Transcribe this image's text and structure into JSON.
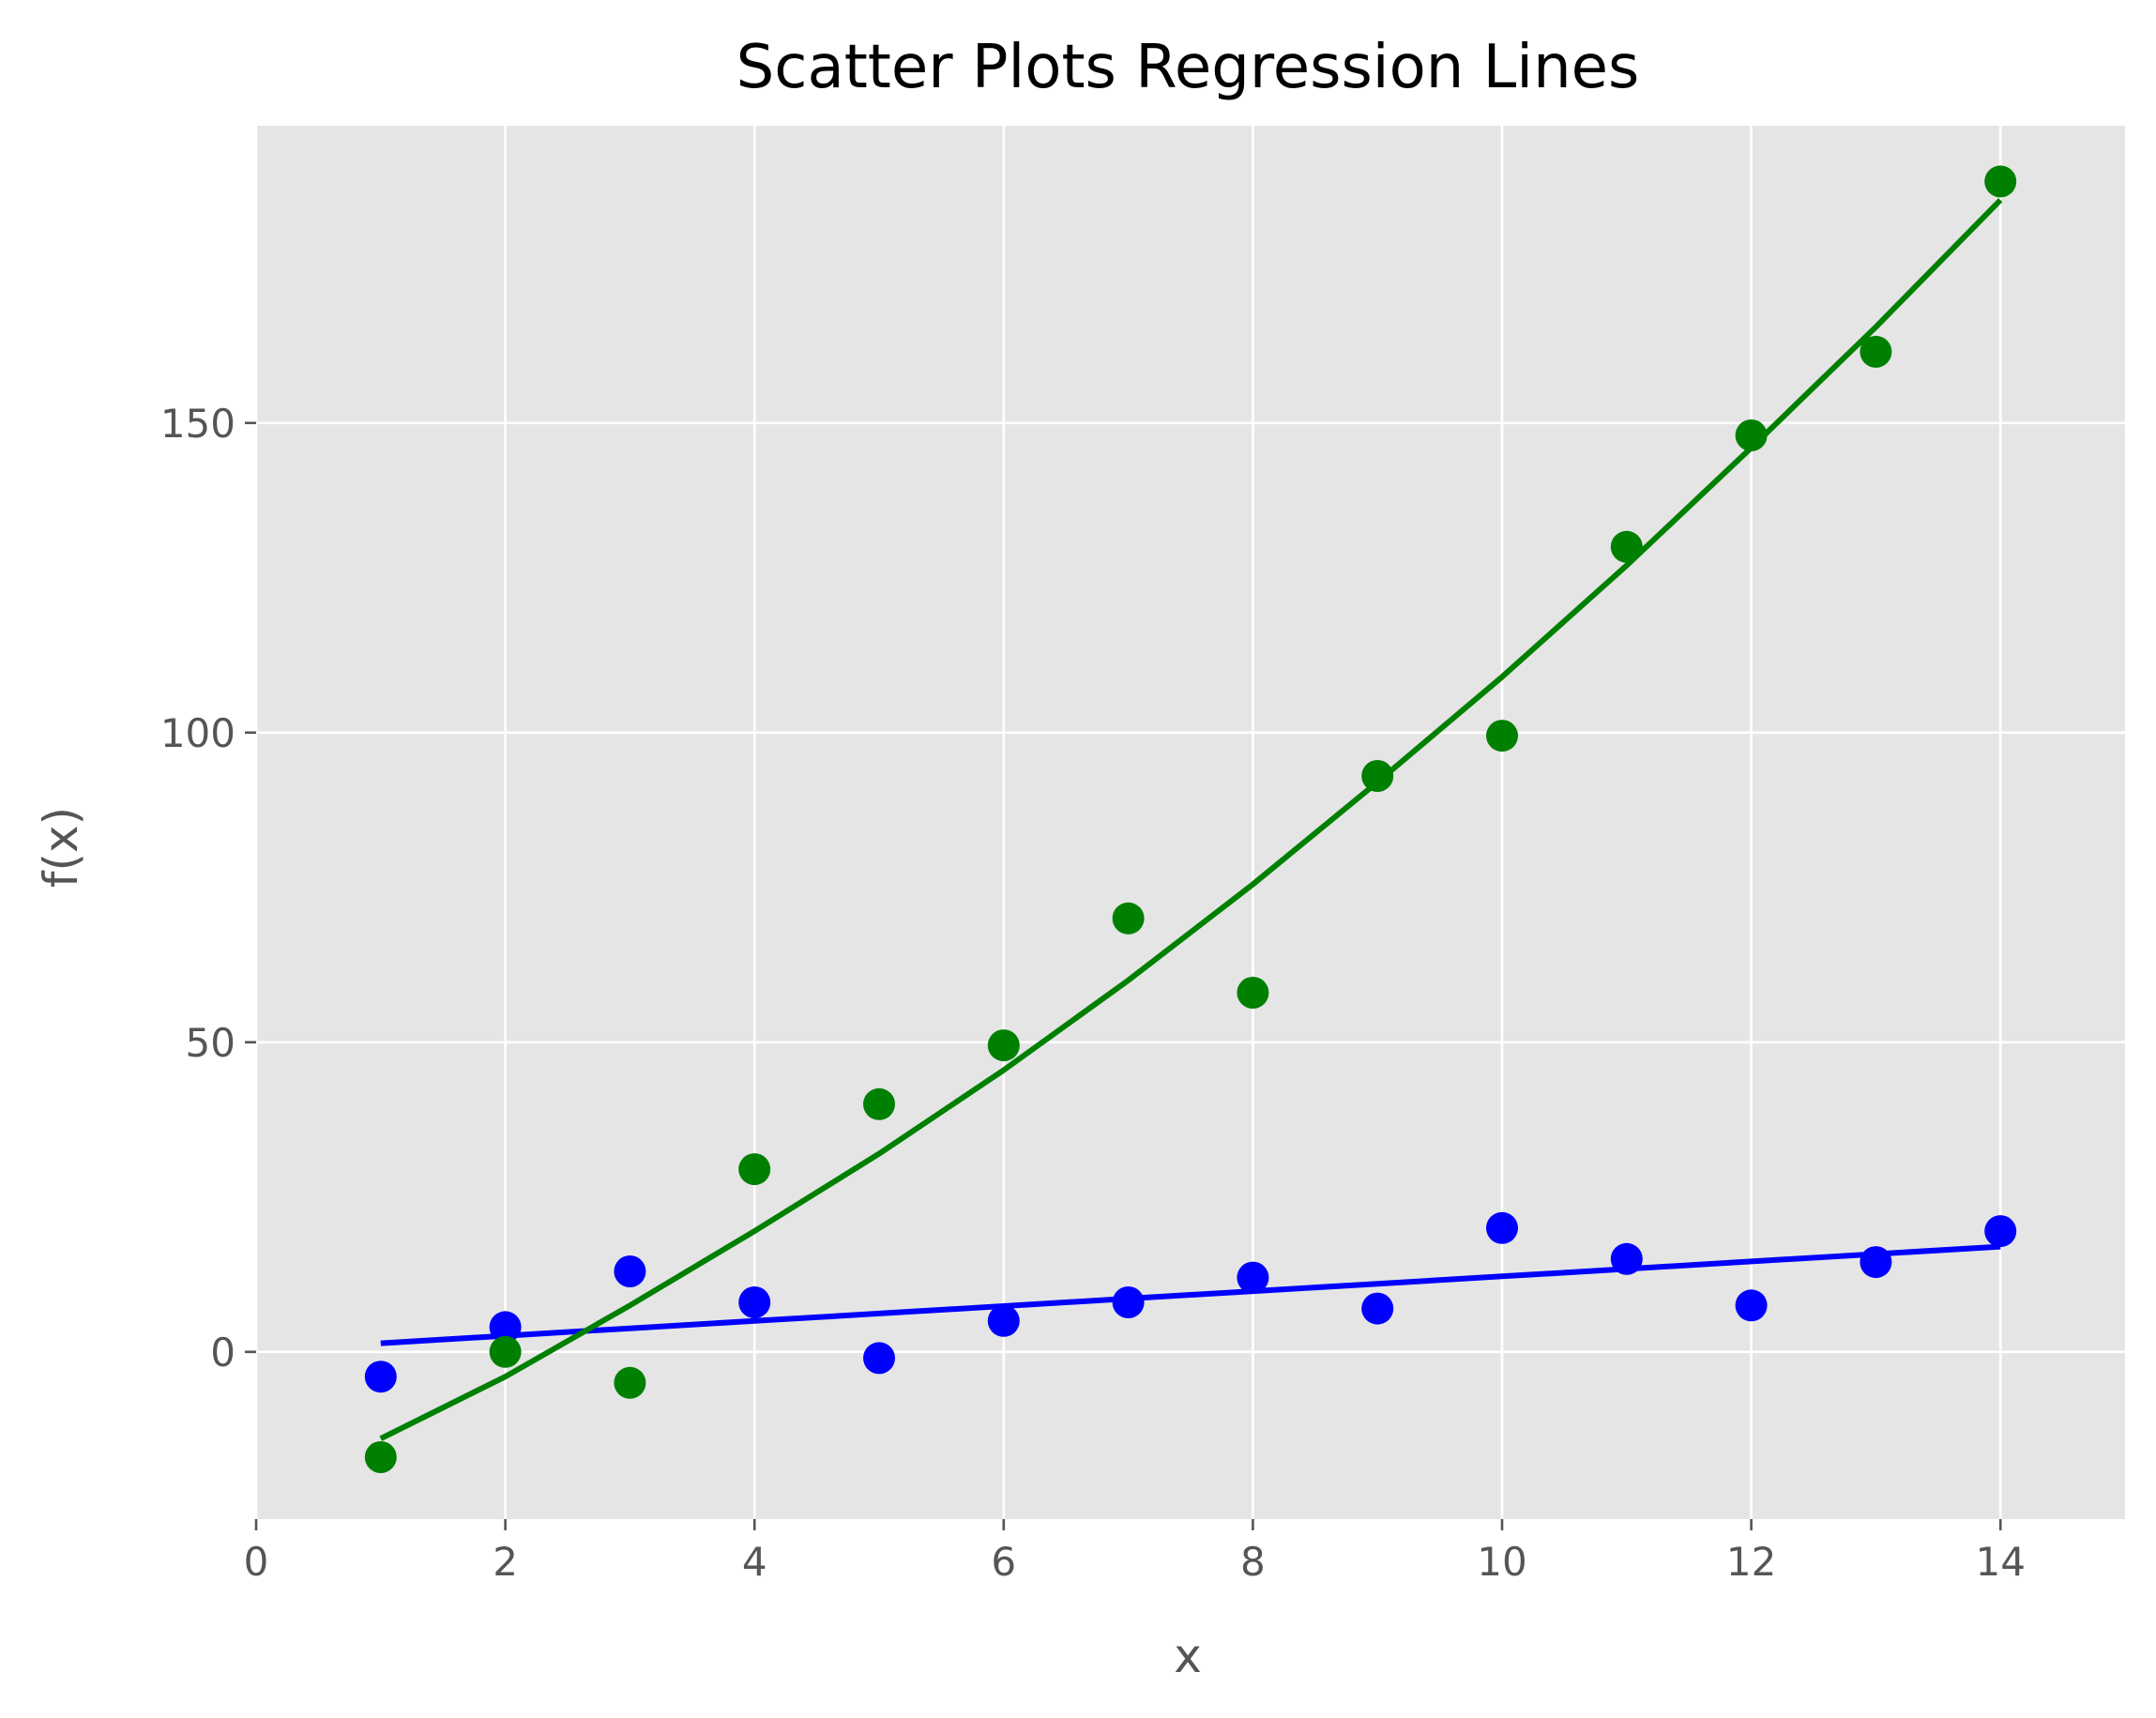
{
  "chart_data": {
    "type": "scatter",
    "title": "Scatter Plots Regression Lines",
    "xlabel": "x",
    "ylabel": "f(x)",
    "xlim": [
      0,
      15
    ],
    "ylim": [
      -27,
      198
    ],
    "xticks": [
      0,
      2,
      4,
      6,
      8,
      10,
      12,
      14
    ],
    "yticks": [
      0,
      50,
      100,
      150
    ],
    "grid": true,
    "legend": false,
    "series": [
      {
        "kind": "points",
        "color": "#0000ff",
        "x": [
          1,
          2,
          3,
          4,
          5,
          6,
          7,
          8,
          9,
          10,
          11,
          12,
          13,
          14
        ],
        "y": [
          -4,
          4,
          13,
          8,
          -1,
          5,
          8,
          12,
          7,
          20,
          15,
          7.5,
          14.5,
          19.5
        ]
      },
      {
        "kind": "points",
        "color": "#008000",
        "x": [
          1,
          2,
          3,
          4,
          5,
          6,
          7,
          8,
          9,
          10,
          11,
          12,
          13,
          14
        ],
        "y": [
          -17,
          0,
          -5,
          29.5,
          40,
          49.5,
          70,
          58,
          93,
          99.5,
          130,
          148,
          161.5,
          189
        ]
      },
      {
        "kind": "line",
        "color": "#0000ff",
        "x": [
          1,
          2,
          3,
          4,
          5,
          6,
          7,
          8,
          9,
          10,
          11,
          12,
          13,
          14
        ],
        "y": [
          1.4,
          2.6,
          3.8,
          5.0,
          6.2,
          7.4,
          8.6,
          9.8,
          11.0,
          12.2,
          13.4,
          14.6,
          15.8,
          17.0
        ]
      },
      {
        "kind": "line",
        "color": "#008000",
        "x": [
          1,
          2,
          3,
          4,
          5,
          6,
          7,
          8,
          9,
          10,
          11,
          12,
          13,
          14
        ],
        "y": [
          -14,
          -4,
          7.5,
          19.5,
          32,
          45.5,
          60,
          75.5,
          92,
          109,
          127,
          146,
          165.5,
          186
        ]
      }
    ]
  }
}
